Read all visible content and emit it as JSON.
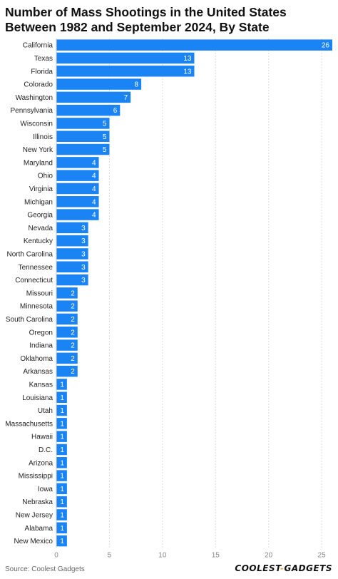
{
  "title": "Number of Mass Shootings in the United States Between 1982 and September 2024, By State",
  "source": "Source: Coolest Gadgets",
  "logo": {
    "left": "COOLEST",
    "dash": "-",
    "right": "GADGETS"
  },
  "colors": {
    "bar": "#1a84f5",
    "bar_label": "#ffffff",
    "grid": "#dddddd",
    "text": "#222222",
    "tick": "#888888"
  },
  "chart_data": {
    "type": "bar",
    "orientation": "horizontal",
    "title": "Number of Mass Shootings in the United States Between 1982 and September 2024, By State",
    "categories": [
      "California",
      "Texas",
      "Florida",
      "Colorado",
      "Washington",
      "Pennsylvania",
      "Wisconsin",
      "Illinois",
      "New York",
      "Maryland",
      "Ohio",
      "Virginia",
      "Michigan",
      "Georgia",
      "Nevada",
      "Kentucky",
      "North Carolina",
      "Tennessee",
      "Connecticut",
      "Missouri",
      "Minnesota",
      "South Carolina",
      "Oregon",
      "Indiana",
      "Oklahoma",
      "Arkansas",
      "Kansas",
      "Louisiana",
      "Utah",
      "Massachusetts",
      "Hawaii",
      "D.C.",
      "Arizona",
      "Mississippi",
      "Iowa",
      "Nebraska",
      "New Jersey",
      "Alabama",
      "New Mexico"
    ],
    "values": [
      26,
      13,
      13,
      8,
      7,
      6,
      5,
      5,
      5,
      4,
      4,
      4,
      4,
      4,
      3,
      3,
      3,
      3,
      3,
      2,
      2,
      2,
      2,
      2,
      2,
      2,
      1,
      1,
      1,
      1,
      1,
      1,
      1,
      1,
      1,
      1,
      1,
      1,
      1
    ],
    "xlim": [
      0,
      26
    ],
    "x_ticks": [
      0,
      5,
      10,
      15,
      20,
      25
    ],
    "grid": true,
    "data_labels": true
  }
}
